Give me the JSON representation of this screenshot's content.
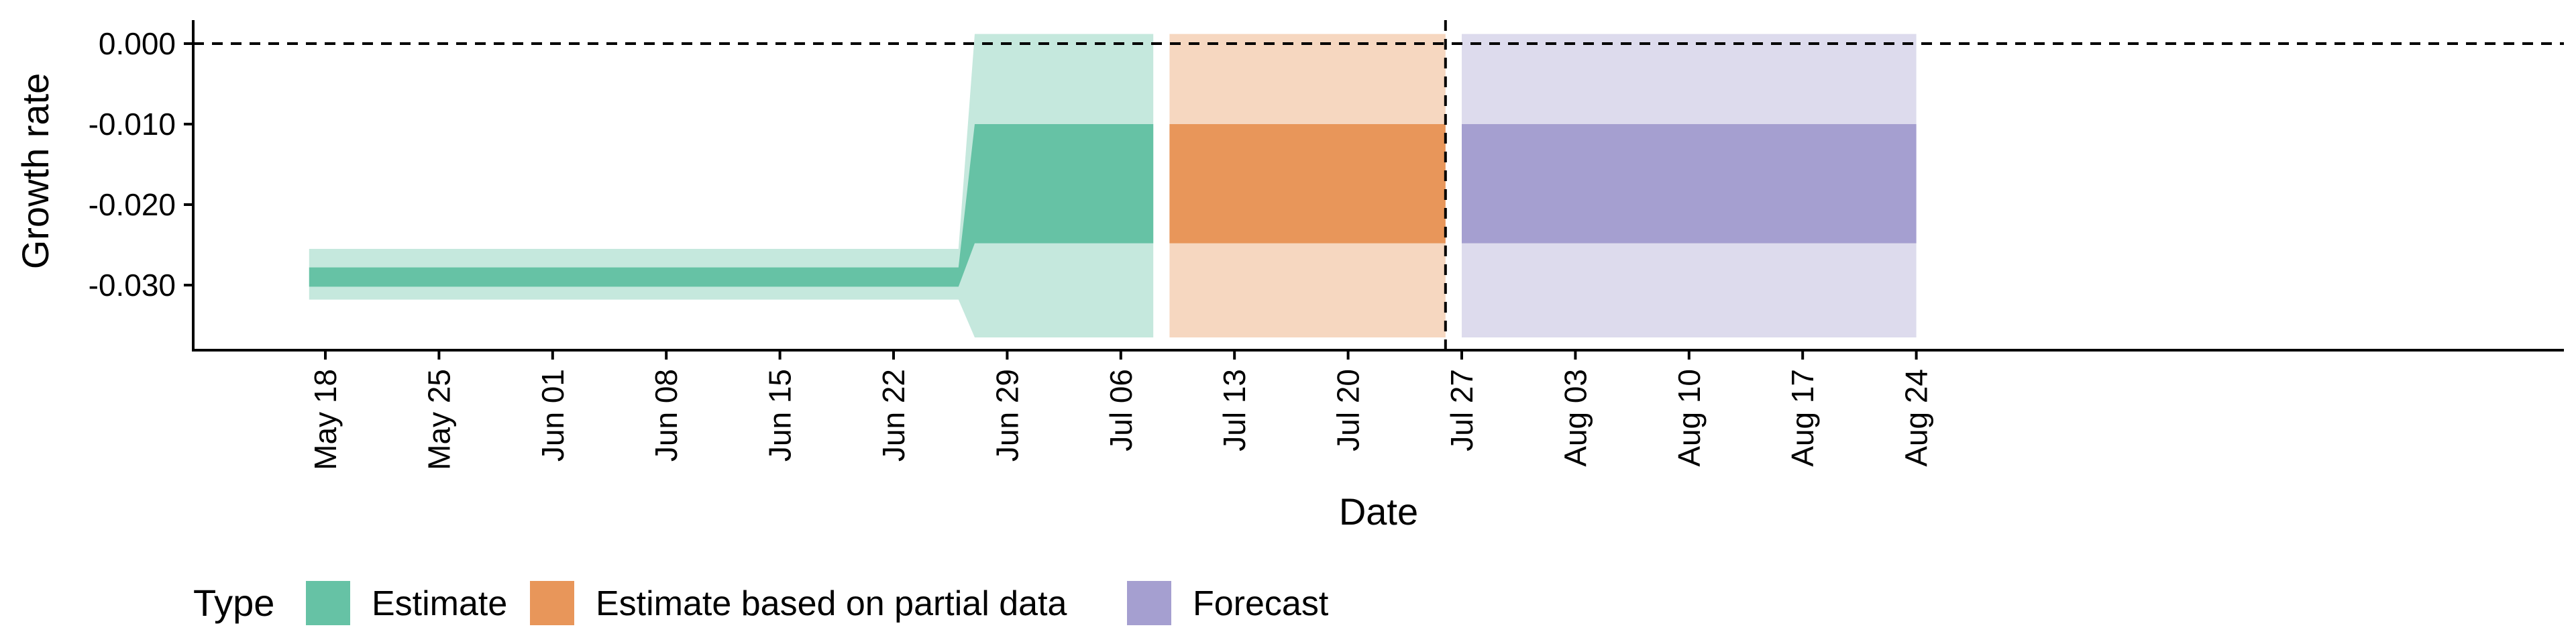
{
  "chart_data": {
    "type": "area",
    "xlabel": "Date",
    "ylabel": "Growth rate",
    "x_ticks": [
      "May 18",
      "May 25",
      "Jun 01",
      "Jun 08",
      "Jun 15",
      "Jun 22",
      "Jun 29",
      "Jul 06",
      "Jul 13",
      "Jul 20",
      "Jul 27",
      "Aug 03",
      "Aug 10",
      "Aug 17",
      "Aug 24"
    ],
    "y_ticks": [
      "0.000",
      "-0.010",
      "-0.020",
      "-0.030"
    ],
    "y_tick_values": [
      0.0,
      -0.01,
      -0.02,
      -0.03
    ],
    "ylim": [
      -0.0385,
      0.003
    ],
    "xlim": [
      "2020-05-09",
      "2020-08-31"
    ],
    "grid": false,
    "reference_lines": [
      {
        "orientation": "horizontal",
        "y": 0.0,
        "style": "dashed"
      },
      {
        "orientation": "vertical",
        "x": "2020-07-26",
        "style": "dashed"
      }
    ],
    "legend": {
      "title": "Type",
      "position": "bottom-left",
      "entries": [
        {
          "label": "Estimate",
          "color": "#66c2a5"
        },
        {
          "label": "Estimate based on partial data",
          "color": "#e8965a"
        },
        {
          "label": "Forecast",
          "color": "#a59fd0"
        }
      ]
    },
    "series": [
      {
        "name": "Estimate",
        "color": "#66c2a5",
        "points": [
          {
            "x": "2020-05-17",
            "outer": [
              -0.0318,
              -0.0255
            ],
            "inner": [
              -0.0302,
              -0.0278
            ]
          },
          {
            "x": "2020-06-26",
            "outer": [
              -0.0318,
              -0.0255
            ],
            "inner": [
              -0.0302,
              -0.0278
            ]
          },
          {
            "x": "2020-06-27",
            "outer": [
              -0.0365,
              0.0012
            ],
            "inner": [
              -0.0248,
              -0.01
            ]
          },
          {
            "x": "2020-07-08",
            "outer": [
              -0.0365,
              0.0012
            ],
            "inner": [
              -0.0248,
              -0.01
            ]
          }
        ]
      },
      {
        "name": "Estimate based on partial data",
        "color": "#e8965a",
        "points": [
          {
            "x": "2020-07-09",
            "outer": [
              -0.0365,
              0.0012
            ],
            "inner": [
              -0.0248,
              -0.01
            ]
          },
          {
            "x": "2020-07-26",
            "outer": [
              -0.0365,
              0.0012
            ],
            "inner": [
              -0.0248,
              -0.01
            ]
          }
        ]
      },
      {
        "name": "Forecast",
        "color": "#a59fd0",
        "points": [
          {
            "x": "2020-07-27",
            "outer": [
              -0.0365,
              0.0012
            ],
            "inner": [
              -0.0248,
              -0.01
            ]
          },
          {
            "x": "2020-08-24",
            "outer": [
              -0.0365,
              0.0012
            ],
            "inner": [
              -0.0248,
              -0.01
            ]
          }
        ]
      }
    ]
  }
}
